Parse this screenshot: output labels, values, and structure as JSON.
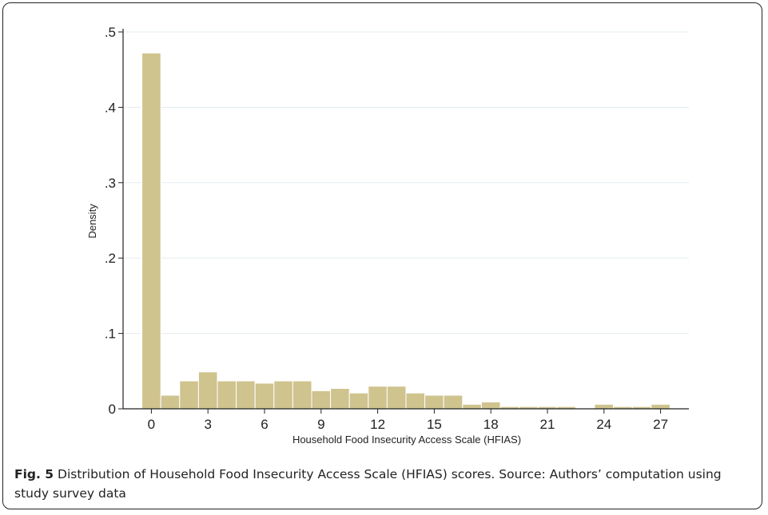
{
  "chart_data": {
    "type": "bar",
    "title": "",
    "xlabel": "Household Food Insecurity Access Scale (HFIAS)",
    "ylabel": "Density",
    "xlim": [
      -1.5,
      28.5
    ],
    "ylim": [
      0,
      0.5
    ],
    "x_ticks": [
      0,
      3,
      6,
      9,
      12,
      15,
      18,
      21,
      24,
      27
    ],
    "x_tick_labels": [
      "0",
      "3",
      "6",
      "9",
      "12",
      "15",
      "18",
      "21",
      "24",
      "27"
    ],
    "y_ticks": [
      0,
      0.1,
      0.2,
      0.3,
      0.4,
      0.5
    ],
    "y_tick_labels": [
      "0",
      ".1",
      ".2",
      ".3",
      ".4",
      ".5"
    ],
    "grid": true,
    "bar_color": "#cfc38e",
    "bar_edge_color": "#ffffff",
    "bin_width": 1,
    "categories": [
      0,
      1,
      2,
      3,
      4,
      5,
      6,
      7,
      8,
      9,
      10,
      11,
      12,
      13,
      14,
      15,
      16,
      17,
      18,
      19,
      20,
      21,
      22,
      23,
      24,
      25,
      26,
      27
    ],
    "values": [
      0.472,
      0.018,
      0.037,
      0.049,
      0.037,
      0.037,
      0.034,
      0.037,
      0.037,
      0.024,
      0.027,
      0.021,
      0.03,
      0.03,
      0.021,
      0.018,
      0.018,
      0.006,
      0.009,
      0.003,
      0.003,
      0.003,
      0.003,
      0.0,
      0.006,
      0.003,
      0.003,
      0.006
    ]
  },
  "caption": {
    "label": "Fig. 5",
    "text": " Distribution of Household Food Insecurity Access Scale (HFIAS) scores. Source: Authors’ computation using study survey data"
  }
}
